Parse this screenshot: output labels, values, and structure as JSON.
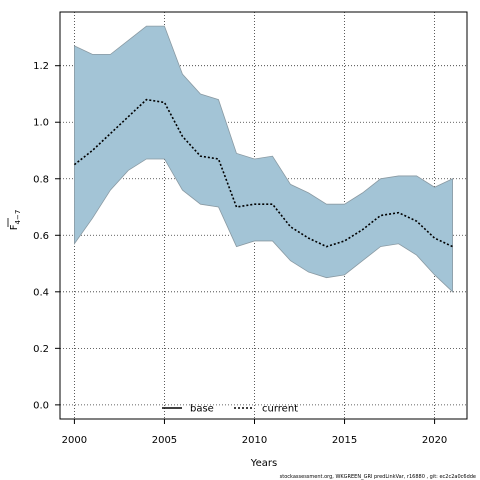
{
  "chart_data": {
    "type": "line",
    "xlabel": "Years",
    "ylabel_main": "F",
    "ylabel_sub": "4−7",
    "xlim": [
      1999.2,
      2021.8
    ],
    "ylim": [
      -0.05,
      1.39
    ],
    "xticks": [
      2000,
      2005,
      2010,
      2015,
      2020
    ],
    "yticks": [
      0.0,
      0.2,
      0.4,
      0.6,
      0.8,
      1.0,
      1.2
    ],
    "ytick_labels": [
      "0.0",
      "0.2",
      "0.4",
      "0.6",
      "0.8",
      "1.0",
      "1.2"
    ],
    "grid": true,
    "band_color": "#a3c4d6",
    "band_edge_color": "#8a9aa3",
    "x": [
      2000,
      2001,
      2002,
      2003,
      2004,
      2005,
      2006,
      2007,
      2008,
      2009,
      2010,
      2011,
      2012,
      2013,
      2014,
      2015,
      2016,
      2017,
      2018,
      2019,
      2020,
      2021
    ],
    "band": {
      "upper": [
        1.27,
        1.24,
        1.24,
        1.29,
        1.34,
        1.34,
        1.17,
        1.1,
        1.08,
        0.89,
        0.87,
        0.88,
        0.78,
        0.75,
        0.71,
        0.71,
        0.75,
        0.8,
        0.81,
        0.81,
        0.77,
        0.8
      ],
      "lower": [
        0.57,
        0.66,
        0.76,
        0.83,
        0.87,
        0.87,
        0.76,
        0.71,
        0.7,
        0.56,
        0.58,
        0.58,
        0.51,
        0.47,
        0.45,
        0.46,
        0.51,
        0.56,
        0.57,
        0.53,
        0.46,
        0.4
      ]
    },
    "series": [
      {
        "name": "current",
        "style": "dotted",
        "color": "#000000",
        "values": [
          0.85,
          0.9,
          0.96,
          1.02,
          1.08,
          1.07,
          0.95,
          0.88,
          0.87,
          0.7,
          0.71,
          0.71,
          0.63,
          0.59,
          0.56,
          0.58,
          0.62,
          0.67,
          0.68,
          0.65,
          0.59,
          0.56
        ]
      }
    ],
    "legend": {
      "position": "bottom-center",
      "entries": [
        {
          "name": "base",
          "style": "solid",
          "color": "#000000"
        },
        {
          "name": "current",
          "style": "dotted",
          "color": "#000000"
        }
      ]
    }
  },
  "credit_text": "stockassessment.org, WKGREEN_GRI predLinkVar, r16880 , git: ec2c2a0c6dde"
}
